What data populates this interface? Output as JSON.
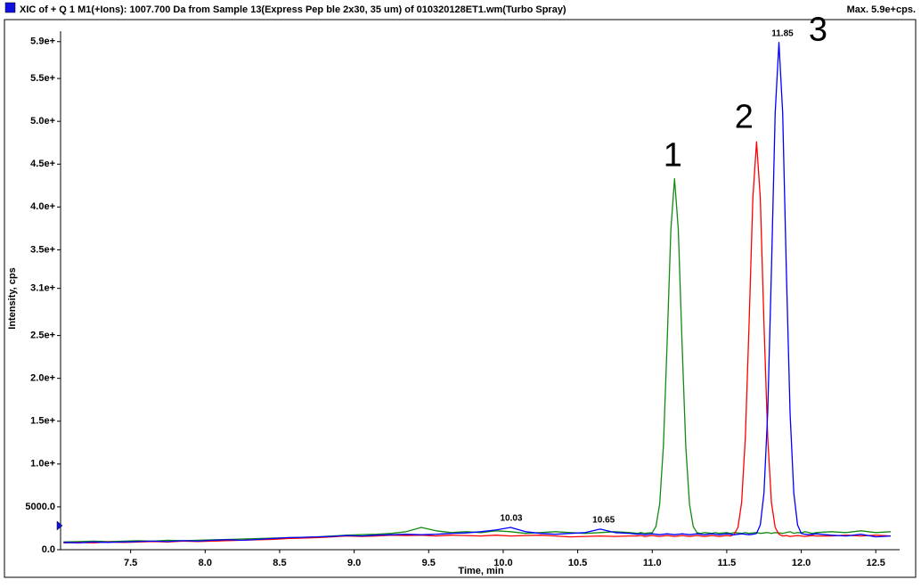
{
  "chart_data": {
    "type": "line",
    "title": "XIC of + Q 1 M1(+Ions): 1007.700 Da from Sample 13(Express Pep ble 2x30, 35 um) of 010320128ET1.wm(Turbo Spray)",
    "subtitle": "Max. 5.9e+cps.",
    "x_label": "Time, min",
    "y_label": "Intensity, cps",
    "xlim": [
      7.03,
      12.66
    ],
    "ylim": [
      0,
      60000
    ],
    "xticks": [
      7.5,
      {
        "value": 8,
        "label": "8.0"
      },
      8.5,
      {
        "value": 9,
        "label": "9.0"
      },
      9.5,
      {
        "value": 10,
        "label": "10.0"
      },
      10.5,
      {
        "value": 11,
        "label": "11.0"
      },
      11.5,
      {
        "value": 12,
        "label": "12.0"
      },
      12.5
    ],
    "yticks": [
      {
        "value": 0,
        "label": "0.0"
      },
      {
        "value": 5000,
        "label": "5000.0"
      },
      {
        "value": 10000,
        "label": "1.0e+"
      },
      {
        "value": 15000,
        "label": "1.5e+"
      },
      {
        "value": 20000,
        "label": "2.0e+"
      },
      {
        "value": 25000,
        "label": "2.5e+"
      },
      {
        "value": 30500,
        "label": "3.1e+"
      },
      {
        "value": 35000,
        "label": "3.5e+"
      },
      {
        "value": 40000,
        "label": "4.0e+"
      },
      {
        "value": 45000,
        "label": "4.5e+"
      },
      {
        "value": 50000,
        "label": "5.0e+"
      },
      {
        "value": 55000,
        "label": "5.5e+"
      },
      {
        "value": 59300,
        "label": "5.9e+"
      }
    ],
    "peak_labels": [
      10.03,
      10.65,
      11.85
    ],
    "x": [
      7.05,
      7.15,
      7.25,
      7.35,
      7.45,
      7.55,
      7.65,
      7.75,
      7.85,
      7.95,
      8.05,
      8.15,
      8.25,
      8.35,
      8.45,
      8.55,
      8.65,
      8.75,
      8.85,
      8.95,
      9.05,
      9.15,
      9.25,
      9.35,
      9.45,
      9.55,
      9.65,
      9.75,
      9.85,
      9.95,
      10.05,
      10.15,
      10.25,
      10.35,
      10.45,
      10.55,
      10.65,
      10.75,
      10.85,
      10.9,
      10.925,
      10.95,
      10.975,
      11.0,
      11.025,
      11.05,
      11.075,
      11.1,
      11.125,
      11.15,
      11.175,
      11.2,
      11.225,
      11.25,
      11.275,
      11.3,
      11.325,
      11.35,
      11.375,
      11.4,
      11.425,
      11.45,
      11.475,
      11.5,
      11.525,
      11.55,
      11.575,
      11.6,
      11.625,
      11.65,
      11.675,
      11.7,
      11.725,
      11.75,
      11.775,
      11.8,
      11.825,
      11.85,
      11.875,
      11.9,
      11.925,
      11.95,
      11.975,
      12.0,
      12.025,
      12.05,
      12.075,
      12.1,
      12.2,
      12.3,
      12.4,
      12.5,
      12.6
    ],
    "series": [
      {
        "name": "1",
        "color": "#138a13",
        "values": [
          900,
          950,
          1000,
          950,
          1000,
          1050,
          1000,
          1100,
          1050,
          1100,
          1150,
          1200,
          1250,
          1300,
          1350,
          1400,
          1450,
          1500,
          1600,
          1700,
          1750,
          1800,
          1900,
          2100,
          2600,
          2200,
          2000,
          2100,
          2000,
          2200,
          2100,
          1900,
          2000,
          2100,
          2000,
          1900,
          2000,
          2100,
          2000,
          1900,
          2000,
          1900,
          1950,
          2000,
          2700,
          5300,
          12100,
          24200,
          37400,
          43300,
          37400,
          24200,
          12100,
          5300,
          2700,
          2000,
          1900,
          2000,
          1950,
          1900,
          2000,
          1900,
          1950,
          2000,
          1900,
          2000,
          1950,
          1900,
          2000,
          1900,
          1950,
          2000,
          1900,
          1950,
          2000,
          1900,
          2000,
          1950,
          1900,
          2000,
          2100,
          1900,
          2000,
          1950,
          2100,
          2000,
          1900,
          2000,
          2100,
          2000,
          2200,
          2000,
          2100
        ]
      },
      {
        "name": "2",
        "color": "#ff0000",
        "values": [
          800,
          850,
          800,
          900,
          850,
          900,
          950,
          900,
          1000,
          950,
          1000,
          1050,
          1100,
          1150,
          1200,
          1300,
          1350,
          1400,
          1500,
          1600,
          1550,
          1600,
          1700,
          1650,
          1700,
          1600,
          1700,
          1650,
          1600,
          1700,
          1600,
          1650,
          1700,
          1600,
          1500,
          1550,
          1600,
          1550,
          1600,
          1600,
          1650,
          1550,
          1600,
          1650,
          1600,
          1550,
          1600,
          1650,
          1600,
          1550,
          1600,
          1650,
          1600,
          1550,
          1600,
          1650,
          1600,
          1550,
          1600,
          1650,
          1600,
          1550,
          1600,
          1650,
          1600,
          1800,
          2600,
          5500,
          13100,
          26400,
          41000,
          47600,
          41000,
          26400,
          13100,
          5500,
          2600,
          1800,
          1600,
          1650,
          1550,
          1600,
          1650,
          1600,
          1550,
          1600,
          1650,
          1600,
          1600,
          1700,
          1600,
          1700,
          1600
        ]
      },
      {
        "name": "3",
        "color": "#0000ff",
        "values": [
          850,
          800,
          900,
          850,
          900,
          950,
          1000,
          950,
          1050,
          1000,
          1100,
          1150,
          1100,
          1200,
          1300,
          1400,
          1450,
          1500,
          1550,
          1650,
          1600,
          1700,
          1750,
          1800,
          1750,
          1800,
          1900,
          1950,
          2100,
          2300,
          2600,
          2100,
          1900,
          1800,
          1900,
          2000,
          2400,
          2000,
          1900,
          1800,
          1850,
          1750,
          1800,
          1850,
          1800,
          1750,
          1800,
          1850,
          1800,
          1750,
          1800,
          1850,
          1800,
          1750,
          1800,
          1850,
          1800,
          1750,
          1800,
          1850,
          1800,
          1750,
          1800,
          1850,
          1800,
          1750,
          1800,
          1850,
          1800,
          1750,
          1800,
          1900,
          2900,
          6600,
          16000,
          32700,
          51000,
          59200,
          51000,
          32700,
          16000,
          6600,
          2900,
          1900,
          1800,
          1750,
          1800,
          1850,
          1700,
          1600,
          1800,
          1500,
          1600
        ]
      }
    ]
  }
}
